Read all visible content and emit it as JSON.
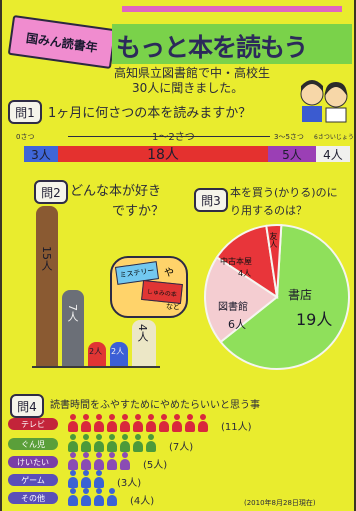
{
  "header": {
    "badge": "国みん読書年",
    "title": "もっと本を読もう",
    "subtitle_line1": "高知県立図書館で中・高校生",
    "subtitle_line2": "30人に聞きました。"
  },
  "q1": {
    "tag": "問1",
    "question": "1ヶ月に何さつの本を読みますか？",
    "ranges": [
      "0さつ",
      "1〜2さつ",
      "3〜5さつ",
      "6さついじょう"
    ],
    "counts": [
      "3人",
      "18人",
      "5人",
      "4人"
    ],
    "colors": [
      "#3f66d8",
      "#e4312f",
      "#9b3fb5",
      "#f0f0ee"
    ]
  },
  "q2": {
    "tag": "問2",
    "question_line1": "どんな本が好き",
    "question_line2": "ですか？",
    "bars": [
      {
        "label": "15人",
        "value": 15,
        "color": "#8a5a32"
      },
      {
        "label": "7人",
        "value": 7,
        "color": "#6b6f77"
      },
      {
        "label": "2人",
        "value": 2,
        "color": "#e03534"
      },
      {
        "label": "2人",
        "value": 2,
        "color": "#3c5fd6"
      },
      {
        "label": "4人",
        "value": 4,
        "color": "#ece7c6"
      }
    ],
    "bubble_a": "ミステリー",
    "bubble_ya": "や",
    "bubble_b": "しゅみの本",
    "bubble_c": "など"
  },
  "q3": {
    "tag": "問3",
    "question_line1": "本を買う(かりる)のに",
    "question_line2": "り用するのは？",
    "slices": [
      {
        "name": "書店",
        "count": "19人",
        "value": 19,
        "color": "#8fe05b"
      },
      {
        "name": "図書館",
        "count": "6人",
        "value": 6,
        "color": "#f4cdd1"
      },
      {
        "name": "中古本屋",
        "count": "4人",
        "value": 4,
        "color": "#e8353a"
      },
      {
        "name": "友人",
        "count": "1人",
        "value": 1,
        "color": "#e8353a"
      }
    ]
  },
  "q4": {
    "tag": "問4",
    "question": "読書時間をふやすためにやめたらいいと思う事",
    "rows": [
      {
        "label": "テレビ",
        "count": "(11人)",
        "value": 11,
        "pill": "#c3243a",
        "fig": "#d9283c"
      },
      {
        "label": "ぐん児",
        "count": "(7人)",
        "value": 7,
        "pill": "#5a9f3a",
        "fig": "#4c9a3a"
      },
      {
        "label": "けいたい",
        "count": "(5人)",
        "value": 5,
        "pill": "#7a3fa6",
        "fig": "#8a4cb4"
      },
      {
        "label": "ゲーム",
        "count": "(3人)",
        "value": 3,
        "pill": "#5a4fb8",
        "fig": "#3b63d4"
      },
      {
        "label": "その他",
        "count": "(4人)",
        "value": 4,
        "pill": "#5a4fb8",
        "fig": "#3b63d4"
      }
    ],
    "footnote": "(2010年8月28日現在)"
  }
}
